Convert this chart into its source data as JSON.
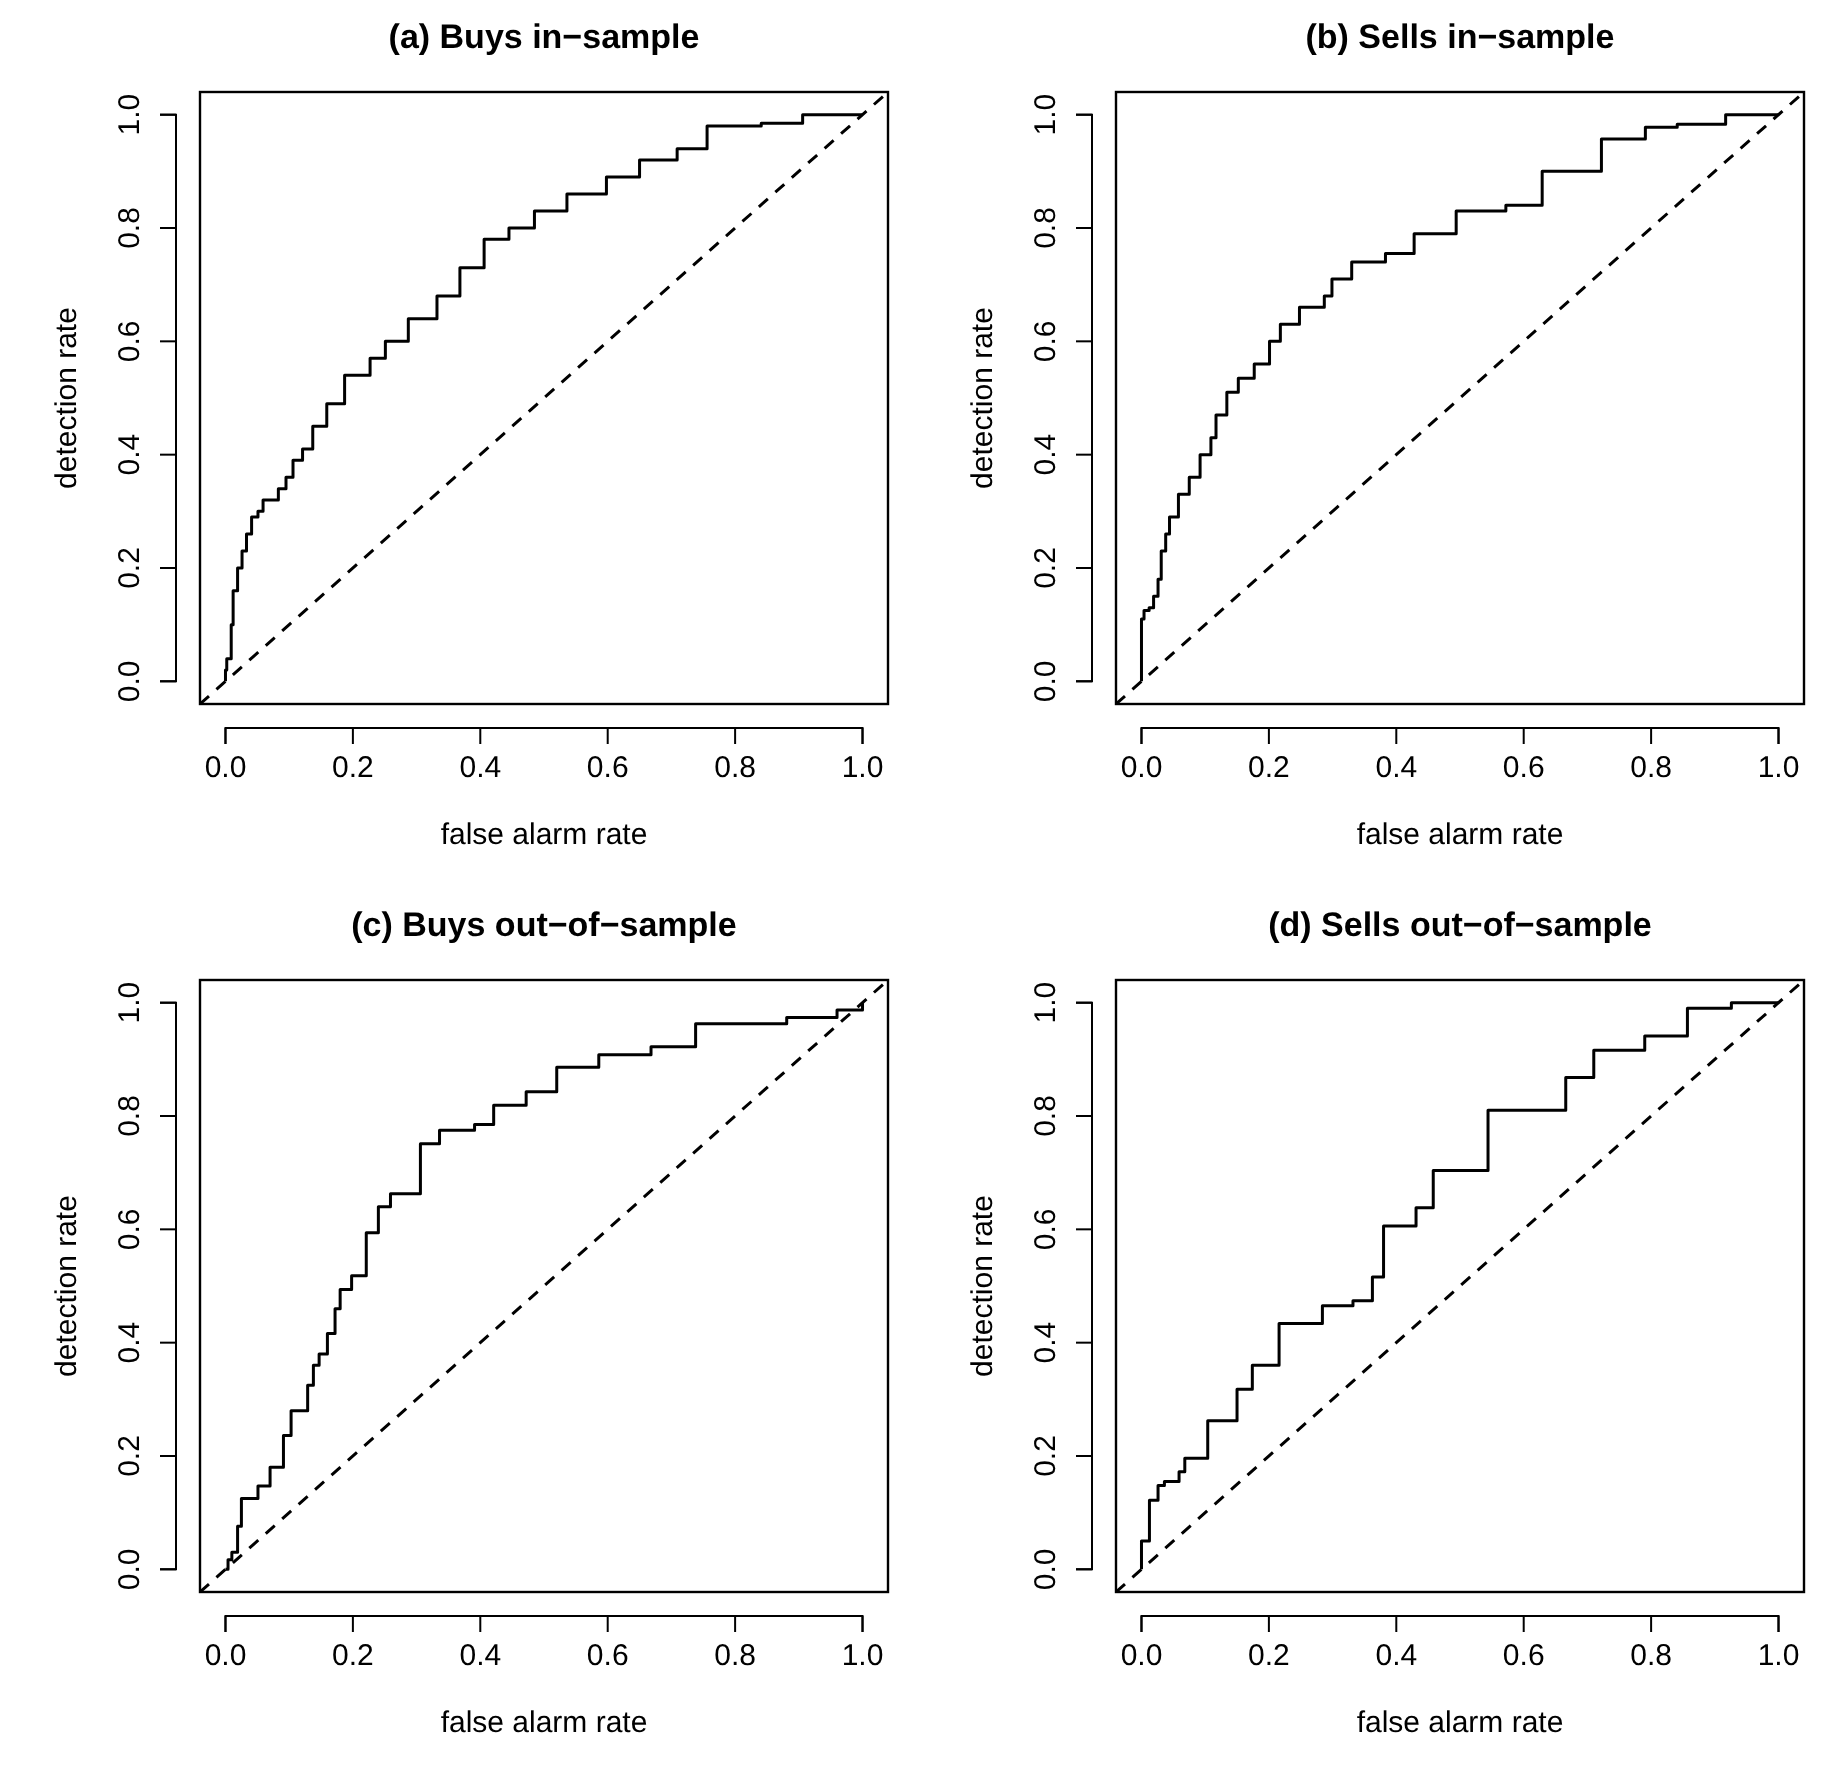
{
  "chart_data": [
    {
      "type": "step",
      "title": "(a) Buys in−sample",
      "xlabel": "false alarm rate",
      "ylabel": "detection rate",
      "xlim": [
        -0.04,
        1.04
      ],
      "ylim": [
        -0.04,
        1.04
      ],
      "xticks": [
        {
          "value": 0,
          "label": "0.0"
        },
        {
          "value": 0.2,
          "label": "0.2"
        },
        {
          "value": 0.4,
          "label": "0.4"
        },
        {
          "value": 0.6,
          "label": "0.6"
        },
        {
          "value": 0.8,
          "label": "0.8"
        },
        {
          "value": 1,
          "label": "1.0"
        }
      ],
      "yticks": [
        {
          "value": 0,
          "label": "0.0"
        },
        {
          "value": 0.2,
          "label": "0.2"
        },
        {
          "value": 0.4,
          "label": "0.4"
        },
        {
          "value": 0.6,
          "label": "0.6"
        },
        {
          "value": 0.8,
          "label": "0.8"
        },
        {
          "value": 1,
          "label": "1.0"
        }
      ],
      "series": [
        {
          "type": "step",
          "color": "#000000",
          "line_style": "solid",
          "x": [
            0,
            0,
            0.002,
            0.009,
            0.012,
            0.019,
            0.026,
            0.033,
            0.041,
            0.051,
            0.059,
            0.083,
            0.095,
            0.106,
            0.121,
            0.137,
            0.159,
            0.187,
            0.227,
            0.251,
            0.287,
            0.332,
            0.368,
            0.406,
            0.445,
            0.485,
            0.536,
            0.598,
            0.65,
            0.709,
            0.756,
            0.841,
            0.906,
            1
          ],
          "values": [
            0,
            0.02,
            0.04,
            0.1,
            0.16,
            0.2,
            0.23,
            0.26,
            0.29,
            0.3,
            0.32,
            0.34,
            0.36,
            0.39,
            0.41,
            0.45,
            0.49,
            0.54,
            0.57,
            0.6,
            0.64,
            0.68,
            0.73,
            0.78,
            0.8,
            0.83,
            0.86,
            0.89,
            0.92,
            0.94,
            0.98,
            0.985,
            1,
            1
          ]
        },
        {
          "type": "line",
          "color": "#000000",
          "line_style": "dashed",
          "x": [
            -0.04,
            1.04
          ],
          "values": [
            -0.04,
            1.04
          ]
        }
      ]
    },
    {
      "type": "step",
      "title": "(b) Sells in−sample",
      "xlabel": "false alarm rate",
      "ylabel": "detection rate",
      "xlim": [
        -0.04,
        1.04
      ],
      "ylim": [
        -0.04,
        1.04
      ],
      "xticks": [
        {
          "value": 0,
          "label": "0.0"
        },
        {
          "value": 0.2,
          "label": "0.2"
        },
        {
          "value": 0.4,
          "label": "0.4"
        },
        {
          "value": 0.6,
          "label": "0.6"
        },
        {
          "value": 0.8,
          "label": "0.8"
        },
        {
          "value": 1,
          "label": "1.0"
        }
      ],
      "yticks": [
        {
          "value": 0,
          "label": "0.0"
        },
        {
          "value": 0.2,
          "label": "0.2"
        },
        {
          "value": 0.4,
          "label": "0.4"
        },
        {
          "value": 0.6,
          "label": "0.6"
        },
        {
          "value": 0.8,
          "label": "0.8"
        },
        {
          "value": 1,
          "label": "1.0"
        }
      ],
      "series": [
        {
          "type": "step",
          "color": "#000000",
          "line_style": "solid",
          "x": [
            0,
            0,
            0.004,
            0.012,
            0.019,
            0.026,
            0.031,
            0.038,
            0.044,
            0.058,
            0.075,
            0.092,
            0.109,
            0.117,
            0.134,
            0.152,
            0.177,
            0.201,
            0.218,
            0.248,
            0.287,
            0.299,
            0.33,
            0.383,
            0.428,
            0.494,
            0.572,
            0.629,
            0.722,
            0.791,
            0.841,
            0.917,
            1
          ],
          "values": [
            0,
            0.11,
            0.125,
            0.13,
            0.15,
            0.18,
            0.23,
            0.26,
            0.29,
            0.33,
            0.36,
            0.4,
            0.43,
            0.47,
            0.51,
            0.535,
            0.56,
            0.6,
            0.63,
            0.66,
            0.68,
            0.71,
            0.74,
            0.755,
            0.79,
            0.83,
            0.84,
            0.9,
            0.957,
            0.978,
            0.983,
            1,
            1
          ]
        },
        {
          "type": "line",
          "color": "#000000",
          "line_style": "dashed",
          "x": [
            -0.04,
            1.04
          ],
          "values": [
            -0.04,
            1.04
          ]
        }
      ]
    },
    {
      "type": "step",
      "title": "(c) Buys out−of−sample",
      "xlabel": "false alarm rate",
      "ylabel": "detection rate",
      "xlim": [
        -0.04,
        1.04
      ],
      "ylim": [
        -0.04,
        1.04
      ],
      "xticks": [
        {
          "value": 0,
          "label": "0.0"
        },
        {
          "value": 0.2,
          "label": "0.2"
        },
        {
          "value": 0.4,
          "label": "0.4"
        },
        {
          "value": 0.6,
          "label": "0.6"
        },
        {
          "value": 0.8,
          "label": "0.8"
        },
        {
          "value": 1,
          "label": "1.0"
        }
      ],
      "yticks": [
        {
          "value": 0,
          "label": "0.0"
        },
        {
          "value": 0.2,
          "label": "0.2"
        },
        {
          "value": 0.4,
          "label": "0.4"
        },
        {
          "value": 0.6,
          "label": "0.6"
        },
        {
          "value": 0.8,
          "label": "0.8"
        },
        {
          "value": 1,
          "label": "1.0"
        }
      ],
      "series": [
        {
          "type": "step",
          "color": "#000000",
          "line_style": "solid",
          "x": [
            0,
            0.004,
            0.01,
            0.019,
            0.025,
            0.051,
            0.07,
            0.091,
            0.103,
            0.129,
            0.138,
            0.147,
            0.16,
            0.172,
            0.18,
            0.198,
            0.221,
            0.24,
            0.259,
            0.306,
            0.336,
            0.391,
            0.421,
            0.472,
            0.52,
            0.586,
            0.668,
            0.738,
            0.881,
            0.96,
            1
          ],
          "values": [
            0,
            0.017,
            0.03,
            0.076,
            0.125,
            0.147,
            0.18,
            0.236,
            0.28,
            0.325,
            0.36,
            0.38,
            0.416,
            0.46,
            0.494,
            0.518,
            0.594,
            0.64,
            0.663,
            0.751,
            0.775,
            0.785,
            0.819,
            0.843,
            0.886,
            0.908,
            0.922,
            0.963,
            0.974,
            0.987,
            1
          ]
        },
        {
          "type": "line",
          "color": "#000000",
          "line_style": "dashed",
          "x": [
            -0.04,
            1.04
          ],
          "values": [
            -0.04,
            1.04
          ]
        }
      ]
    },
    {
      "type": "step",
      "title": "(d) Sells out−of−sample",
      "xlabel": "false alarm rate",
      "ylabel": "detection rate",
      "xlim": [
        -0.04,
        1.04
      ],
      "ylim": [
        -0.04,
        1.04
      ],
      "xticks": [
        {
          "value": 0,
          "label": "0.0"
        },
        {
          "value": 0.2,
          "label": "0.2"
        },
        {
          "value": 0.4,
          "label": "0.4"
        },
        {
          "value": 0.6,
          "label": "0.6"
        },
        {
          "value": 0.8,
          "label": "0.8"
        },
        {
          "value": 1,
          "label": "1.0"
        }
      ],
      "yticks": [
        {
          "value": 0,
          "label": "0.0"
        },
        {
          "value": 0.2,
          "label": "0.2"
        },
        {
          "value": 0.4,
          "label": "0.4"
        },
        {
          "value": 0.6,
          "label": "0.6"
        },
        {
          "value": 0.8,
          "label": "0.8"
        },
        {
          "value": 1,
          "label": "1.0"
        }
      ],
      "series": [
        {
          "type": "step",
          "color": "#000000",
          "line_style": "solid",
          "x": [
            0,
            0,
            0.0125,
            0.026,
            0.036,
            0.059,
            0.068,
            0.104,
            0.15,
            0.174,
            0.216,
            0.284,
            0.332,
            0.3625,
            0.38,
            0.431,
            0.458,
            0.544,
            0.666,
            0.71,
            0.79,
            0.857,
            0.926,
            1
          ],
          "values": [
            0,
            0.05,
            0.122,
            0.148,
            0.155,
            0.172,
            0.196,
            0.262,
            0.318,
            0.36,
            0.434,
            0.465,
            0.474,
            0.516,
            0.606,
            0.638,
            0.704,
            0.81,
            0.868,
            0.916,
            0.941,
            0.99,
            1,
            1
          ]
        },
        {
          "type": "line",
          "color": "#000000",
          "line_style": "dashed",
          "x": [
            -0.04,
            1.04
          ],
          "values": [
            -0.04,
            1.04
          ]
        }
      ]
    }
  ]
}
